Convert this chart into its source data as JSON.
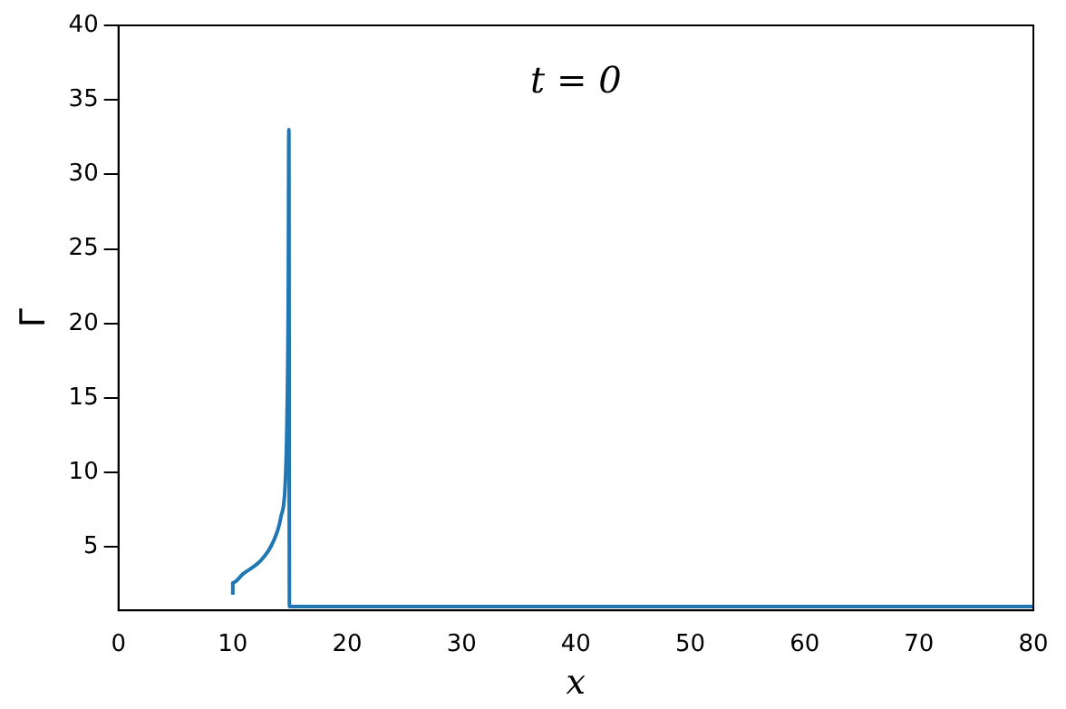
{
  "chart_data": {
    "type": "line",
    "xlabel": "x",
    "ylabel": "Γ",
    "annotations": [
      "t = 0"
    ],
    "series": [
      {
        "color": "#1f77b4",
        "x": [
          10,
          10,
          10.9,
          12.45,
          13.5,
          14.2,
          14.6,
          14.74,
          14.85,
          14.9,
          14.95,
          80
        ],
        "values": [
          1.8,
          2.6,
          3.2,
          4.1,
          5.3,
          7,
          9.5,
          13.7,
          22,
          33,
          1,
          1
        ]
      }
    ],
    "xlim": [
      0,
      80
    ],
    "xticks": [
      0,
      10,
      20,
      30,
      40,
      50,
      60,
      70,
      80
    ],
    "ylim": [
      0.75,
      40
    ],
    "yticks": [
      5,
      10,
      15,
      20,
      25,
      30,
      35,
      40
    ],
    "grid": false,
    "legend": false,
    "marker": "none",
    "line_style": "solid"
  }
}
